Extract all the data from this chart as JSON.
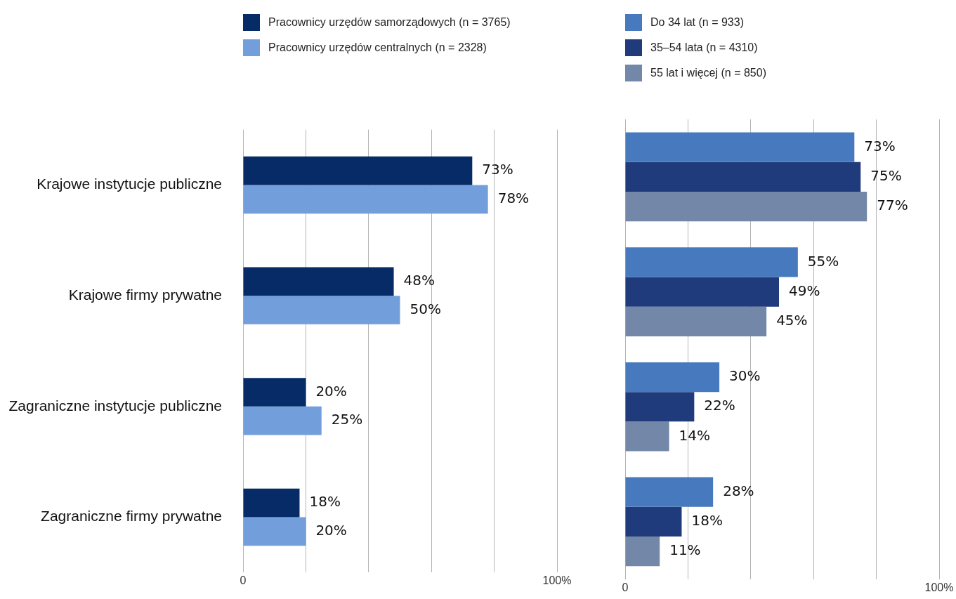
{
  "chart_data": [
    {
      "type": "bar",
      "orientation": "horizontal",
      "categories": [
        "Krajowe instytucje publiczne",
        "Krajowe firmy prywatne",
        "Zagraniczne instytucje publiczne",
        "Zagraniczne firmy prywatne"
      ],
      "series": [
        {
          "name": "Pracownicy urzędów samorządowych (n = 3765)",
          "color": "#062b66",
          "values": [
            73,
            48,
            20,
            18
          ],
          "value_labels": [
            "73%",
            "48%",
            "20%",
            "18%"
          ]
        },
        {
          "name": "Pracownicy urzędów centralnych (n = 2328)",
          "color": "#729fdb",
          "values": [
            78,
            50,
            25,
            20
          ],
          "value_labels": [
            "78%",
            "50%",
            "25%",
            "20%"
          ]
        }
      ],
      "xlim": [
        0,
        100
      ],
      "xticks": [
        {
          "value": 0,
          "label": "0"
        },
        {
          "value": 20,
          "label": null
        },
        {
          "value": 40,
          "label": null
        },
        {
          "value": 60,
          "label": null
        },
        {
          "value": 80,
          "label": null
        },
        {
          "value": 100,
          "label": "100%"
        }
      ],
      "grid": "x",
      "legend": "top"
    },
    {
      "type": "bar",
      "orientation": "horizontal",
      "categories": [
        null,
        null,
        null,
        null
      ],
      "series": [
        {
          "name": "Do 34 lat (n = 933)",
          "color": "#4779be",
          "values": [
            73,
            55,
            30,
            28
          ],
          "value_labels": [
            "73%",
            "55%",
            "30%",
            "28%"
          ]
        },
        {
          "name": "35–54 lata (n = 4310)",
          "color": "#1f3b7c",
          "values": [
            75,
            49,
            22,
            18
          ],
          "value_labels": [
            "75%",
            "49%",
            "22%",
            "18%"
          ]
        },
        {
          "name": "55 lat i więcej (n = 850)",
          "color": "#7387a9",
          "values": [
            77,
            45,
            14,
            11
          ],
          "value_labels": [
            "77%",
            "45%",
            "14%",
            "11%"
          ]
        }
      ],
      "xlim": [
        0,
        100
      ],
      "xticks": [
        {
          "value": 0,
          "label": "0"
        },
        {
          "value": 20,
          "label": null
        },
        {
          "value": 40,
          "label": null
        },
        {
          "value": 60,
          "label": null
        },
        {
          "value": 80,
          "label": null
        },
        {
          "value": 100,
          "label": "100%"
        }
      ],
      "grid": "x",
      "legend": "top",
      "tick_labels": "x"
    }
  ]
}
